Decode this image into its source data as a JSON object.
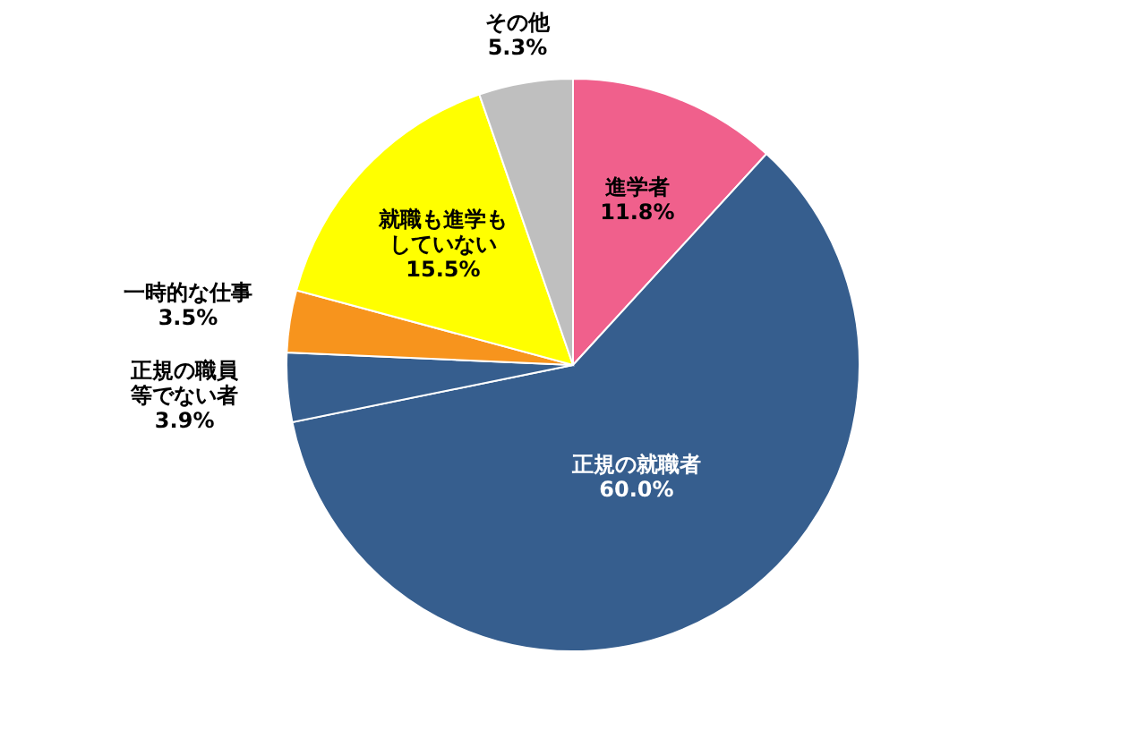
{
  "chart_data": {
    "type": "pie",
    "categories": [
      "進学者",
      "正規の就職者",
      "正規の職員等でない者",
      "一時的な仕事",
      "就職も進学もしていない",
      "その他"
    ],
    "values": [
      11.8,
      60.0,
      3.9,
      3.5,
      15.5,
      5.3
    ],
    "colors": [
      "#f0608c",
      "#365e8e",
      "#365e8e",
      "#f7941d",
      "#ffff00",
      "#bfbfbf"
    ],
    "value_labels": [
      "11.8%",
      "60.0%",
      "3.9%",
      "3.5%",
      "15.5%",
      "5.3%"
    ]
  }
}
